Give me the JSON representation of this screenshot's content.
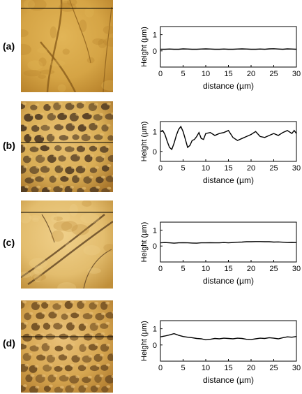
{
  "panels": [
    {
      "label": "(a)",
      "image_colors": [
        "#b7812a",
        "#d5a445",
        "#8a5d1a",
        "#e2b557"
      ],
      "image_features": "scratches",
      "chart_data": {
        "type": "line",
        "xlabel": "distance (µm)",
        "ylabel": "Height (µm)",
        "xlim": [
          0,
          30
        ],
        "ylim": [
          -1,
          1.5
        ],
        "xticks": [
          0,
          5,
          10,
          15,
          20,
          25,
          30
        ],
        "yticks": [
          0,
          1
        ],
        "grid": false,
        "x": [
          0,
          1,
          2,
          3,
          4,
          5,
          6,
          7,
          8,
          9,
          10,
          11,
          12,
          13,
          14,
          15,
          16,
          17,
          18,
          19,
          20,
          21,
          22,
          23,
          24,
          25,
          26,
          27,
          28,
          29,
          30
        ],
        "y": [
          0.1,
          0.1,
          0.11,
          0.1,
          0.1,
          0.12,
          0.11,
          0.1,
          0.1,
          0.11,
          0.12,
          0.11,
          0.1,
          0.1,
          0.11,
          0.1,
          0.1,
          0.11,
          0.12,
          0.11,
          0.1,
          0.1,
          0.11,
          0.1,
          0.12,
          0.13,
          0.11,
          0.1,
          0.12,
          0.11,
          0.1
        ]
      }
    },
    {
      "label": "(b)",
      "image_colors": [
        "#a6732a",
        "#d9ad55",
        "#4a3520",
        "#e8c071"
      ],
      "image_features": "pits",
      "chart_data": {
        "type": "line",
        "xlabel": "distance (µm)",
        "ylabel": "Height (µm)",
        "xlim": [
          0,
          30
        ],
        "ylim": [
          -0.5,
          1.5
        ],
        "xticks": [
          0,
          5,
          10,
          15,
          20,
          25,
          30
        ],
        "yticks": [
          0,
          1
        ],
        "grid": false,
        "x": [
          0,
          0.5,
          1,
          1.5,
          2,
          2.5,
          3,
          3.5,
          4,
          4.5,
          5,
          5.5,
          6,
          6.5,
          7,
          7.5,
          8,
          8.5,
          9,
          9.5,
          10,
          11,
          12,
          13,
          14,
          15,
          16,
          17,
          18,
          19,
          20,
          21,
          22,
          23,
          24,
          25,
          26,
          27,
          28,
          29,
          29.5,
          30
        ],
        "y": [
          1.0,
          1.05,
          0.85,
          0.5,
          0.2,
          0.1,
          0.4,
          0.8,
          1.1,
          1.25,
          1.0,
          0.6,
          0.2,
          0.3,
          0.55,
          0.6,
          0.75,
          0.95,
          0.65,
          0.6,
          0.9,
          0.95,
          0.8,
          0.9,
          0.95,
          1.05,
          0.7,
          0.55,
          0.65,
          0.75,
          0.85,
          1.0,
          0.75,
          0.7,
          0.8,
          0.9,
          0.8,
          0.95,
          1.05,
          0.9,
          1.05,
          0.9
        ]
      }
    },
    {
      "label": "(c)",
      "image_colors": [
        "#c08f3a",
        "#e3bd6e",
        "#5e4222",
        "#f0d08a"
      ],
      "image_features": "scratches",
      "chart_data": {
        "type": "line",
        "xlabel": "distance (µm)",
        "ylabel": "Height (µm)",
        "xlim": [
          0,
          30
        ],
        "ylim": [
          -1,
          1.5
        ],
        "xticks": [
          0,
          5,
          10,
          15,
          20,
          25,
          30
        ],
        "yticks": [
          0,
          1
        ],
        "grid": false,
        "x": [
          0,
          1,
          2,
          3,
          4,
          5,
          6,
          7,
          8,
          9,
          10,
          11,
          12,
          13,
          14,
          15,
          16,
          17,
          18,
          19,
          20,
          21,
          22,
          23,
          24,
          25,
          26,
          27,
          28,
          29,
          30
        ],
        "y": [
          0.2,
          0.22,
          0.2,
          0.18,
          0.2,
          0.21,
          0.2,
          0.19,
          0.18,
          0.2,
          0.2,
          0.21,
          0.2,
          0.2,
          0.22,
          0.2,
          0.22,
          0.24,
          0.25,
          0.27,
          0.27,
          0.28,
          0.28,
          0.27,
          0.27,
          0.25,
          0.26,
          0.24,
          0.22,
          0.23,
          0.22
        ]
      }
    },
    {
      "label": "(d)",
      "image_colors": [
        "#b07b2e",
        "#d6a650",
        "#6b4a20",
        "#eac27a"
      ],
      "image_features": "pits",
      "chart_data": {
        "type": "line",
        "xlabel": "distance (µm)",
        "ylabel": "Height (µm)",
        "xlim": [
          0,
          30
        ],
        "ylim": [
          -1,
          1.5
        ],
        "xticks": [
          0,
          5,
          10,
          15,
          20,
          25,
          30
        ],
        "yticks": [
          0,
          1
        ],
        "grid": false,
        "x": [
          0,
          1,
          2,
          3,
          4,
          5,
          6,
          7,
          8,
          9,
          10,
          11,
          12,
          13,
          14,
          15,
          16,
          17,
          18,
          19,
          20,
          21,
          22,
          23,
          24,
          25,
          26,
          27,
          28,
          29,
          30
        ],
        "y": [
          0.5,
          0.55,
          0.62,
          0.7,
          0.6,
          0.52,
          0.48,
          0.45,
          0.4,
          0.38,
          0.32,
          0.35,
          0.4,
          0.38,
          0.42,
          0.4,
          0.38,
          0.42,
          0.4,
          0.35,
          0.33,
          0.38,
          0.42,
          0.4,
          0.45,
          0.42,
          0.38,
          0.45,
          0.5,
          0.48,
          0.52
        ]
      }
    }
  ]
}
